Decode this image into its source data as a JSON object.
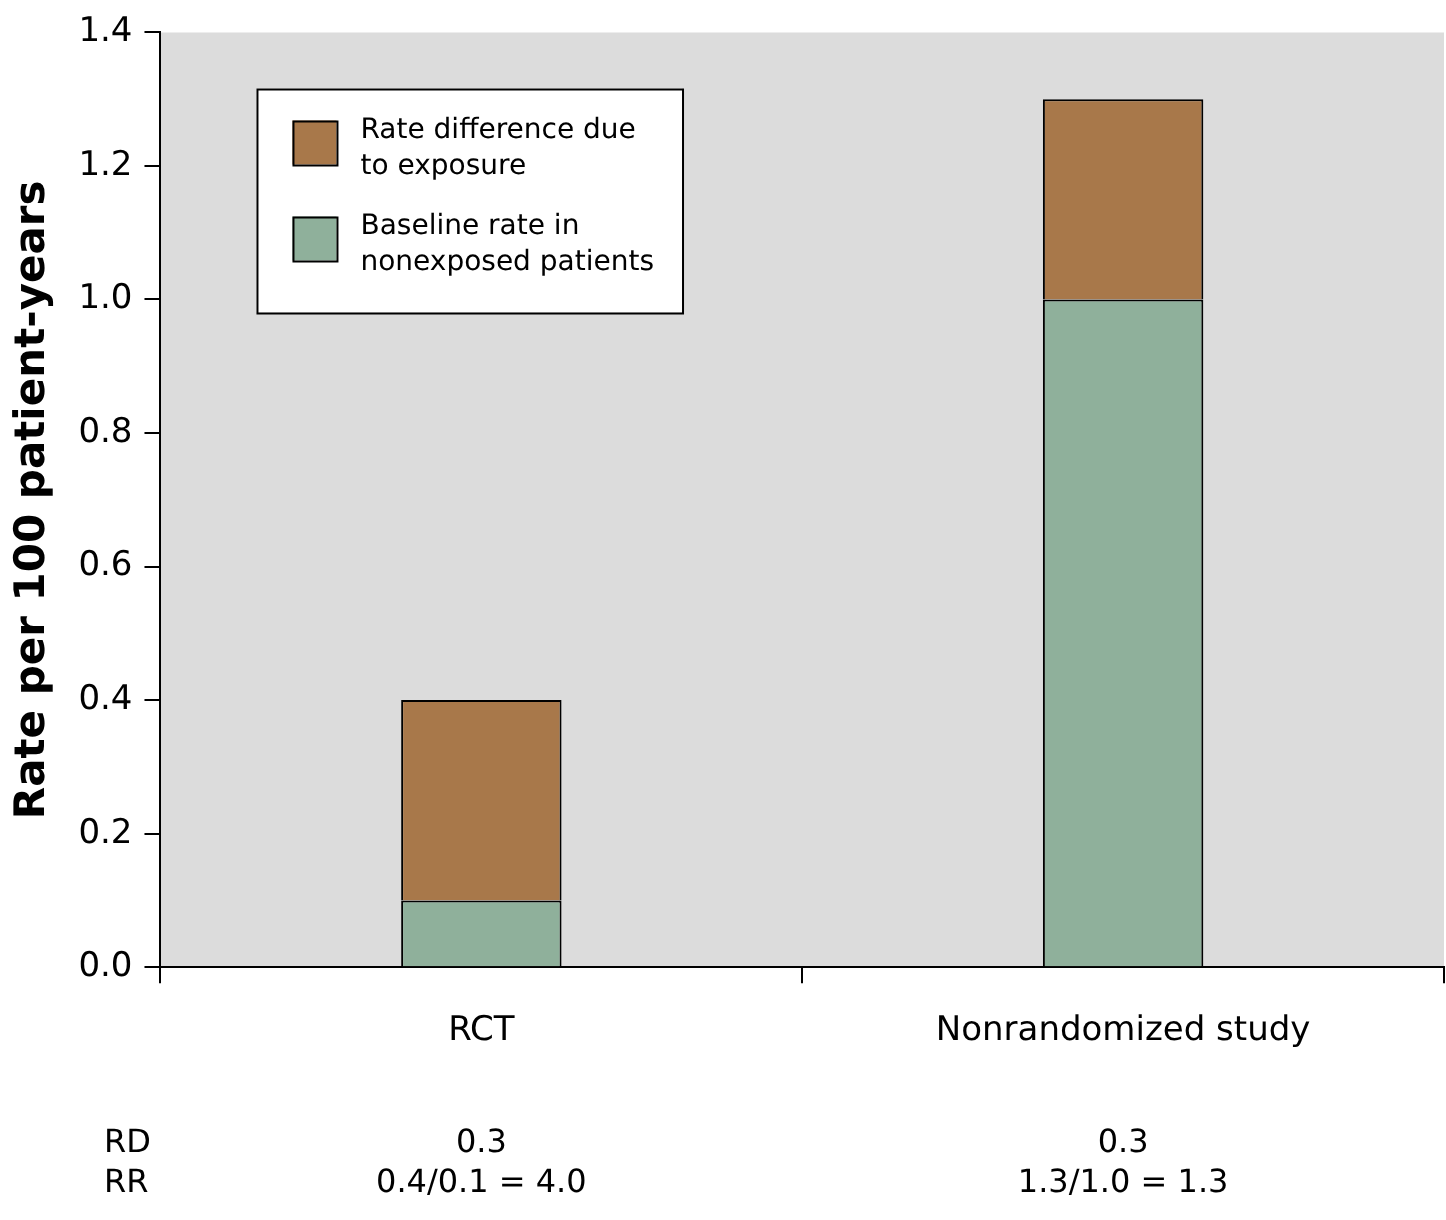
{
  "chart_data": {
    "type": "bar",
    "ylabel": "Rate per 100 patient-years",
    "categories": [
      "RCT",
      "Nonrandomized study"
    ],
    "stacked": true,
    "series": [
      {
        "name": "Baseline rate in nonexposed patients",
        "color": "#8fb09b",
        "values": [
          0.1,
          1.0
        ]
      },
      {
        "name": "Rate difference due to exposure",
        "color": "#a8784a",
        "values": [
          0.3,
          0.3
        ]
      }
    ],
    "ylim": [
      0,
      1.4
    ],
    "yticks": [
      {
        "value": 0,
        "label": "0.0"
      },
      {
        "value": 0.2,
        "label": "0.2"
      },
      {
        "value": 0.4,
        "label": "0.4"
      },
      {
        "value": 0.6,
        "label": "0.6"
      },
      {
        "value": 0.8,
        "label": "0.8"
      },
      {
        "value": 1,
        "label": "1.0"
      },
      {
        "value": 1.2,
        "label": "1.2"
      },
      {
        "value": 1.4,
        "label": "1.4"
      }
    ],
    "legend": "top left",
    "grid": false,
    "annotations": [
      "RD",
      "0.3",
      "0.3",
      "RR",
      "0.4/0.1 = 4.0",
      "1.3/1.0 = 1.3"
    ]
  }
}
